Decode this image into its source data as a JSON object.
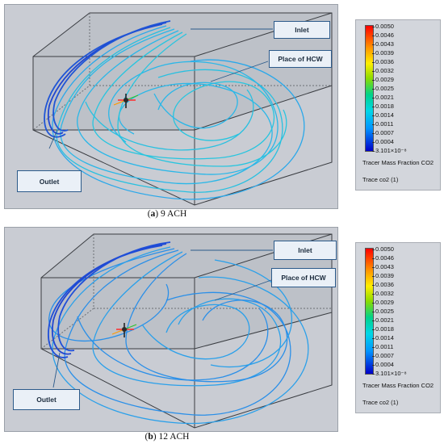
{
  "panels": [
    {
      "id": "a",
      "caption_letter": "a",
      "caption_text": " 9 ACH",
      "callouts": {
        "inlet": "Inlet",
        "hcw": "Place of HCW",
        "outlet": "Outlet"
      },
      "legend": {
        "ticks": [
          "0.0050",
          "0.0046",
          "0.0043",
          "0.0039",
          "0.0036",
          "0.0032",
          "0.0029",
          "0.0025",
          "0.0021",
          "0.0018",
          "0.0014",
          "0.0011",
          "0.0007",
          "0.0004",
          "3.101×10⁻⁸"
        ],
        "quantity": "Tracer Mass Fraction CO2",
        "trace_name": "Trace co2 (1)"
      },
      "colors": {
        "streamline": "#27b5e6",
        "streamline_dark": "#1f55d6"
      }
    },
    {
      "id": "b",
      "caption_letter": "b",
      "caption_text": " 12 ACH",
      "callouts": {
        "inlet": "Inlet",
        "hcw": "Place of HCW",
        "outlet": "Outlet"
      },
      "legend": {
        "ticks": [
          "0.0050",
          "0.0046",
          "0.0043",
          "0.0039",
          "0.0036",
          "0.0032",
          "0.0029",
          "0.0025",
          "0.0021",
          "0.0018",
          "0.0014",
          "0.0011",
          "0.0007",
          "0.0004",
          "3.101×10⁻⁸"
        ],
        "quantity": "Tracer Mass Fraction CO2",
        "trace_name": "Trace co2 (1)"
      },
      "colors": {
        "streamline": "#2a8fe8",
        "streamline_dark": "#1f4fd9"
      }
    }
  ]
}
